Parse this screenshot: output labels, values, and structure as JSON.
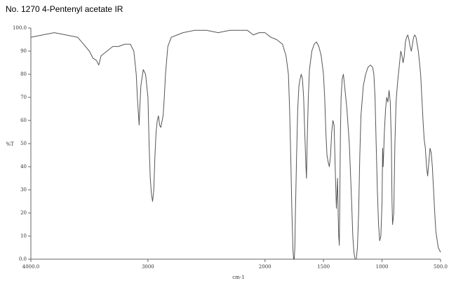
{
  "title": "No. 1270 4-Pentenyl acetate  IR",
  "chart_data": {
    "type": "line",
    "title": "No. 1270 4-Pentenyl acetate  IR",
    "xlabel": "cm-1",
    "ylabel": "%T",
    "xlim": [
      4000,
      500
    ],
    "ylim": [
      0,
      100
    ],
    "x_ticks": [
      {
        "value": 4000,
        "label": "4000.0"
      },
      {
        "value": 3000,
        "label": "3000"
      },
      {
        "value": 2000,
        "label": "2000"
      },
      {
        "value": 1500,
        "label": "1500"
      },
      {
        "value": 1000,
        "label": "1000"
      },
      {
        "value": 500,
        "label": "500.0"
      }
    ],
    "y_ticks": [
      {
        "value": 0,
        "label": "0.0"
      },
      {
        "value": 10,
        "label": "10"
      },
      {
        "value": 20,
        "label": "20"
      },
      {
        "value": 30,
        "label": "30"
      },
      {
        "value": 40,
        "label": "40"
      },
      {
        "value": 50,
        "label": "50"
      },
      {
        "value": 60,
        "label": "60"
      },
      {
        "value": 70,
        "label": "70"
      },
      {
        "value": 80,
        "label": "80"
      },
      {
        "value": 90,
        "label": "90"
      },
      {
        "value": 100,
        "label": "100.0"
      }
    ],
    "grid": false,
    "series": [
      {
        "color": "#555555",
        "x": [
          4000,
          3900,
          3800,
          3700,
          3600,
          3550,
          3500,
          3470,
          3440,
          3420,
          3400,
          3350,
          3300,
          3250,
          3200,
          3150,
          3120,
          3100,
          3090,
          3080,
          3075,
          3070,
          3060,
          3040,
          3020,
          3000,
          2990,
          2980,
          2970,
          2960,
          2950,
          2940,
          2930,
          2920,
          2910,
          2900,
          2890,
          2870,
          2860,
          2850,
          2830,
          2800,
          2750,
          2700,
          2600,
          2500,
          2400,
          2300,
          2200,
          2150,
          2100,
          2050,
          2000,
          1950,
          1900,
          1850,
          1820,
          1800,
          1790,
          1780,
          1770,
          1760,
          1755,
          1750,
          1745,
          1740,
          1730,
          1720,
          1710,
          1700,
          1690,
          1680,
          1670,
          1660,
          1650,
          1645,
          1640,
          1630,
          1620,
          1600,
          1580,
          1560,
          1550,
          1540,
          1520,
          1500,
          1490,
          1480,
          1470,
          1460,
          1450,
          1440,
          1435,
          1430,
          1420,
          1410,
          1400,
          1395,
          1390,
          1385,
          1380,
          1375,
          1370,
          1365,
          1360,
          1355,
          1350,
          1340,
          1330,
          1320,
          1300,
          1280,
          1260,
          1250,
          1240,
          1230,
          1220,
          1210,
          1200,
          1190,
          1180,
          1160,
          1140,
          1120,
          1100,
          1080,
          1070,
          1060,
          1050,
          1040,
          1030,
          1020,
          1010,
          1000,
          995,
          990,
          985,
          980,
          970,
          960,
          950,
          940,
          930,
          920,
          915,
          910,
          900,
          890,
          880,
          870,
          860,
          850,
          840,
          830,
          820,
          810,
          800,
          790,
          780,
          770,
          760,
          750,
          740,
          730,
          720,
          710,
          700,
          690,
          680,
          670,
          660,
          650,
          640,
          630,
          620,
          610,
          600,
          590,
          580,
          570,
          560,
          550,
          540,
          520,
          500
        ],
        "y": [
          96,
          97,
          98,
          97,
          96,
          93,
          90,
          87,
          86,
          84,
          88,
          90,
          92,
          92,
          93,
          93,
          90,
          80,
          70,
          62,
          58,
          65,
          75,
          82,
          80,
          70,
          50,
          35,
          28,
          25,
          30,
          45,
          55,
          60,
          62,
          58,
          57,
          62,
          70,
          80,
          92,
          96,
          97,
          98,
          99,
          99,
          98,
          99,
          99,
          99,
          97,
          98,
          98,
          96,
          95,
          93,
          88,
          80,
          65,
          45,
          20,
          3,
          0,
          0,
          5,
          20,
          45,
          65,
          75,
          78,
          80,
          78,
          70,
          55,
          40,
          35,
          50,
          70,
          82,
          90,
          93,
          94,
          93,
          92,
          88,
          80,
          70,
          55,
          45,
          42,
          40,
          45,
          50,
          55,
          60,
          58,
          40,
          30,
          22,
          28,
          35,
          20,
          10,
          6,
          30,
          55,
          70,
          78,
          80,
          75,
          65,
          50,
          25,
          10,
          3,
          0,
          0,
          5,
          20,
          45,
          62,
          75,
          80,
          83,
          84,
          83,
          80,
          70,
          50,
          30,
          15,
          8,
          10,
          25,
          48,
          40,
          48,
          55,
          65,
          70,
          68,
          73,
          68,
          50,
          25,
          15,
          20,
          50,
          68,
          75,
          80,
          85,
          90,
          88,
          85,
          88,
          94,
          96,
          97,
          95,
          92,
          90,
          93,
          96,
          97,
          96,
          93,
          90,
          85,
          80,
          70,
          60,
          52,
          48,
          40,
          36,
          42,
          48,
          46,
          40,
          30,
          20,
          12,
          5,
          3
        ]
      }
    ]
  }
}
